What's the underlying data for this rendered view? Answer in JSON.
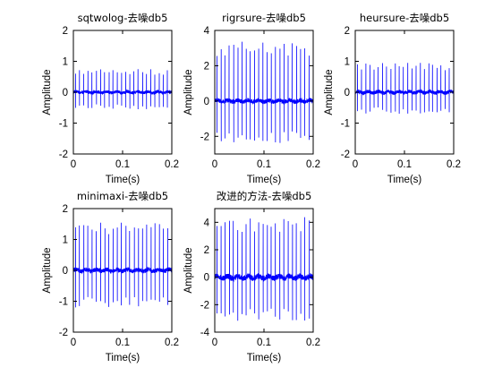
{
  "chart_data": [
    {
      "type": "line",
      "title": "sqtwolog-去噪db5",
      "xlabel": "Time(s)",
      "ylabel": "Amplitude",
      "xlim": [
        0,
        0.2
      ],
      "ylim": [
        -2,
        2
      ],
      "xticks": [
        0,
        0.1,
        0.2
      ],
      "yticks": [
        -2,
        -1,
        0,
        1,
        2
      ],
      "xtick_labels": [
        "0",
        "0.1",
        "0.2"
      ],
      "ytick_labels": [
        "-2",
        "-1",
        "0",
        "1",
        "2"
      ],
      "series": [
        {
          "color": "#0000ff",
          "spike_count": 23,
          "spike_max": 0.75,
          "spike_min": -0.55,
          "noise_level": 0.05
        }
      ]
    },
    {
      "type": "line",
      "title": "rigrsure-去噪db5",
      "xlabel": "Time(s)",
      "ylabel": "Amplitude",
      "xlim": [
        0,
        0.2
      ],
      "ylim": [
        -3,
        4
      ],
      "xticks": [
        0,
        0.1,
        0.2
      ],
      "yticks": [
        -2,
        0,
        2,
        4
      ],
      "xtick_labels": [
        "0",
        "0.1",
        "0.2"
      ],
      "ytick_labels": [
        "-2",
        "0",
        "2",
        "4"
      ],
      "series": [
        {
          "color": "#0000ff",
          "spike_count": 23,
          "spike_max": 3.4,
          "spike_min": -2.4,
          "noise_level": 0.12
        }
      ]
    },
    {
      "type": "line",
      "title": "heursure-去噪db5",
      "xlabel": "Time(s)",
      "ylabel": "Amplitude",
      "xlim": [
        0,
        0.2
      ],
      "ylim": [
        -2,
        2
      ],
      "xticks": [
        0,
        0.1,
        0.2
      ],
      "yticks": [
        -2,
        -1,
        0,
        1,
        2
      ],
      "xtick_labels": [
        "0",
        "0.1",
        "0.2"
      ],
      "ytick_labels": [
        "-2",
        "-1",
        "0",
        "1",
        "2"
      ],
      "series": [
        {
          "color": "#0000ff",
          "spike_count": 23,
          "spike_max": 0.95,
          "spike_min": -0.7,
          "noise_level": 0.06
        }
      ]
    },
    {
      "type": "line",
      "title": "minimaxi-去噪db5",
      "xlabel": "Time(s)",
      "ylabel": "Amplitude",
      "xlim": [
        0,
        0.2
      ],
      "ylim": [
        -2,
        2
      ],
      "xticks": [
        0,
        0.1,
        0.2
      ],
      "yticks": [
        -2,
        -1,
        0,
        1,
        2
      ],
      "xtick_labels": [
        "0",
        "0.1",
        "0.2"
      ],
      "ytick_labels": [
        "-2",
        "-1",
        "0",
        "1",
        "2"
      ],
      "series": [
        {
          "color": "#0000ff",
          "spike_count": 23,
          "spike_max": 1.55,
          "spike_min": -1.2,
          "noise_level": 0.07
        }
      ]
    },
    {
      "type": "line",
      "title": "改进的方法-去噪db5",
      "xlabel": "Time(s)",
      "ylabel": "Amplitude",
      "xlim": [
        0,
        0.2
      ],
      "ylim": [
        -4,
        5
      ],
      "xticks": [
        0,
        0.1,
        0.2
      ],
      "yticks": [
        -4,
        -2,
        0,
        2,
        4
      ],
      "xtick_labels": [
        "0",
        "0.1",
        "0.2"
      ],
      "ytick_labels": [
        "-4",
        "-2",
        "0",
        "2",
        "4"
      ],
      "series": [
        {
          "color": "#0000ff",
          "spike_count": 23,
          "spike_max": 4.4,
          "spike_min": -3.2,
          "noise_level": 0.2
        }
      ]
    }
  ]
}
